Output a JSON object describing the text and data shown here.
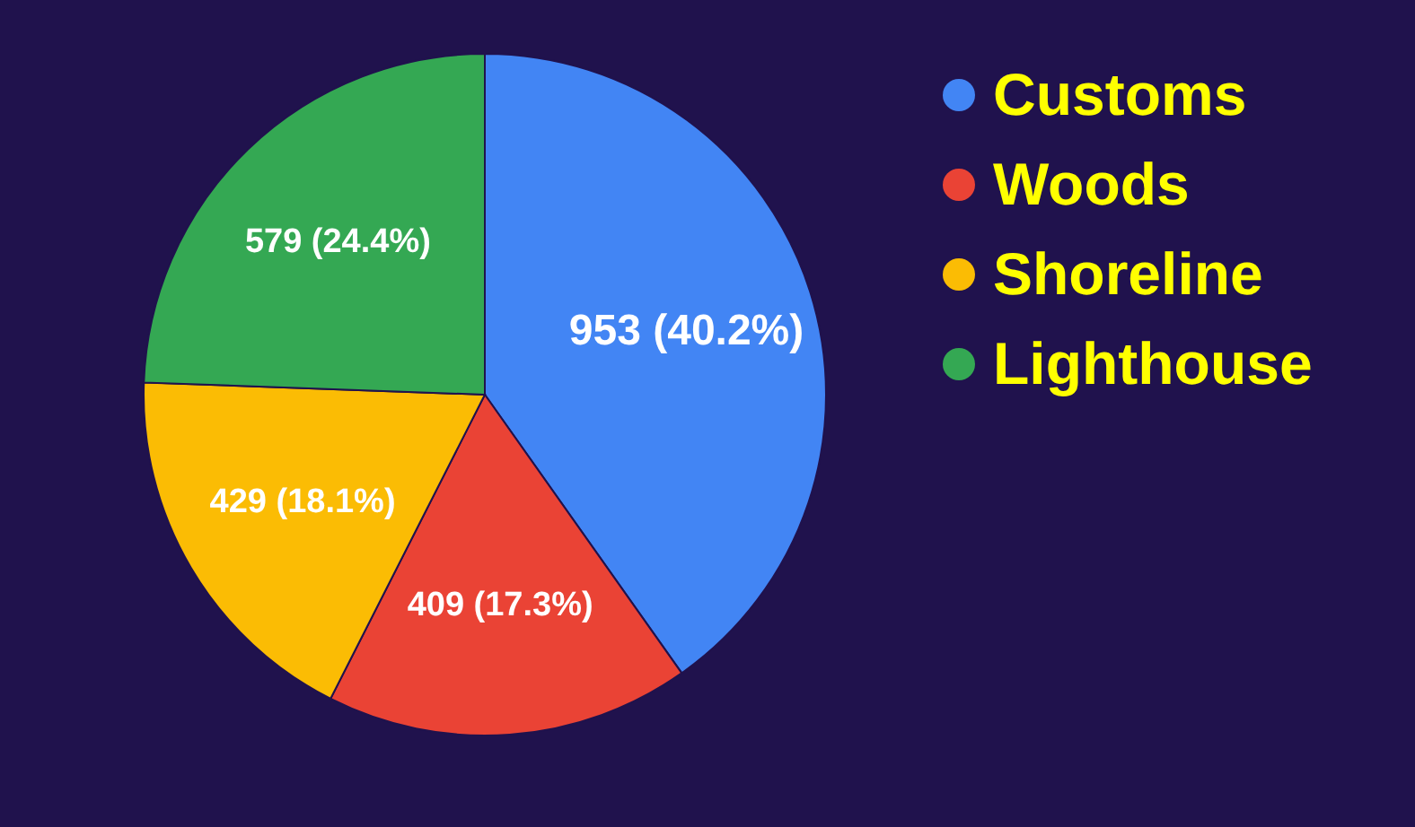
{
  "chart_data": {
    "type": "pie",
    "categories": [
      "Customs",
      "Woods",
      "Shoreline",
      "Lighthouse"
    ],
    "values": [
      953,
      409,
      429,
      579
    ],
    "colors": [
      "#4285f4",
      "#ea4335",
      "#fbbc04",
      "#34a853"
    ],
    "value_labels": [
      "953 (40.2%)",
      "409 (17.3%)",
      "429 (18.1%)",
      "579 (24.4%)"
    ],
    "legend": "top right"
  }
}
